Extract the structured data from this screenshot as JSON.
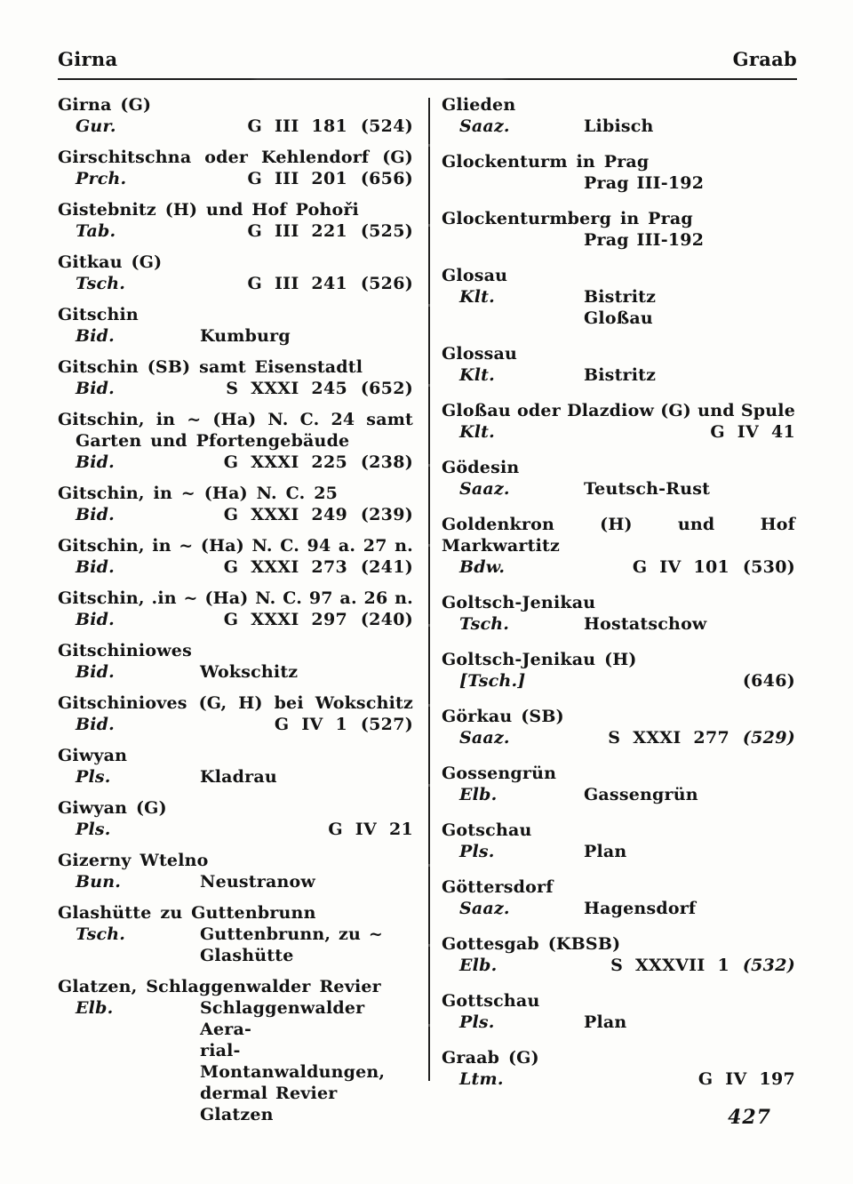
{
  "page": {
    "running_header_left": "Girna",
    "running_header_right": "Graab",
    "page_number": "427"
  },
  "columns": {
    "left": {
      "entries": [
        {
          "head": [
            "Girna (G)"
          ],
          "details": [
            {
              "abbr": "Gur.",
              "ref": "G III 181",
              "paren": "(524)"
            }
          ]
        },
        {
          "head": [
            "Girschitschna oder Kehlendorf (G)"
          ],
          "details": [
            {
              "abbr": "Prch.",
              "ref": "G III 201",
              "paren": "(656)"
            }
          ]
        },
        {
          "head": [
            "Gistebnitz (H) und Hof Pohoři"
          ],
          "details": [
            {
              "abbr": "Tab.",
              "ref": "G III 221",
              "paren": "(525)"
            }
          ]
        },
        {
          "head": [
            "Gitkau (G)"
          ],
          "details": [
            {
              "abbr": "Tsch.",
              "ref": "G III 241",
              "paren": "(526)"
            }
          ]
        },
        {
          "head": [
            "Gitschin"
          ],
          "details": [
            {
              "abbr": "Bid.",
              "value": "Kumburg"
            }
          ]
        },
        {
          "head": [
            "Gitschin (SB) samt Eisenstadtl"
          ],
          "details": [
            {
              "abbr": "Bid.",
              "ref": "S XXXI 245",
              "paren": "(652)"
            }
          ]
        },
        {
          "head": [
            "Gitschin, in ~ (Ha) N. C. 24 samt",
            "Garten und Pfortengebäude"
          ],
          "details": [
            {
              "abbr": "Bid.",
              "ref": "G XXXI 225",
              "paren": "(238)"
            }
          ]
        },
        {
          "head": [
            "Gitschin, in ~ (Ha) N. C. 25"
          ],
          "details": [
            {
              "abbr": "Bid.",
              "ref": "G XXXI 249",
              "paren": "(239)"
            }
          ]
        },
        {
          "head": [
            "Gitschin, in ~ (Ha) N. C. 94 a. 27 n."
          ],
          "details": [
            {
              "abbr": "Bid.",
              "ref": "G XXXI 273",
              "paren": "(241)"
            }
          ]
        },
        {
          "head": [
            "Gitschin, .in ~ (Ha) N. C. 97 a. 26 n."
          ],
          "details": [
            {
              "abbr": "Bid.",
              "ref": "G XXXI 297",
              "paren": "(240)"
            }
          ]
        },
        {
          "head": [
            "Gitschiniowes"
          ],
          "details": [
            {
              "abbr": "Bid.",
              "value": "Wokschitz"
            }
          ]
        },
        {
          "head": [
            "Gitschinioves (G, H) bei Wokschitz"
          ],
          "details": [
            {
              "abbr": "Bid.",
              "ref": "G IV 1",
              "paren": "(527)"
            }
          ]
        },
        {
          "head": [
            "Giwyan"
          ],
          "details": [
            {
              "abbr": "Pls.",
              "value": "Kladrau"
            }
          ]
        },
        {
          "head": [
            "Giwyan (G)"
          ],
          "details": [
            {
              "abbr": "Pls.",
              "ref": "G IV 21"
            }
          ]
        },
        {
          "head": [
            "Gizerny Wtelno"
          ],
          "details": [
            {
              "abbr": "Bun.",
              "value": "Neustranow"
            }
          ]
        },
        {
          "head": [
            "Glashütte zu Guttenbrunn"
          ],
          "details": [
            {
              "abbr": "Tsch.",
              "value": "Guttenbrunn, zu ~\nGlashütte"
            }
          ]
        },
        {
          "head": [
            "Glatzen, Schlaggenwalder Revier"
          ],
          "details": [
            {
              "abbr": "Elb.",
              "value": "Schlaggenwalder Aera-\nrial-Montanwaldungen,\ndermal Revier Glatzen"
            }
          ]
        }
      ]
    },
    "right": {
      "entries": [
        {
          "head": [
            "Glieden"
          ],
          "details": [
            {
              "abbr": "Saaz.",
              "value": "Libisch"
            }
          ]
        },
        {
          "head": [
            "Glockenturm in Prag"
          ],
          "details": [
            {
              "value": "Prag III-192"
            }
          ]
        },
        {
          "head": [
            "Glockenturmberg in Prag"
          ],
          "details": [
            {
              "value": "Prag III-192"
            }
          ]
        },
        {
          "head": [
            "Glosau"
          ],
          "details": [
            {
              "abbr": "Klt.",
              "value": "Bistritz\nGloßau"
            }
          ]
        },
        {
          "head": [
            "Glossau"
          ],
          "details": [
            {
              "abbr": "Klt.",
              "value": "Bistritz"
            }
          ]
        },
        {
          "head": [
            "Gloßau oder Dlazdiow (G) und Spule"
          ],
          "details": [
            {
              "abbr": "Klt.",
              "ref": "G IV 41"
            }
          ]
        },
        {
          "head": [
            "Gödesin"
          ],
          "details": [
            {
              "abbr": "Saaz.",
              "value": "Teutsch-Rust"
            }
          ]
        },
        {
          "head": [
            "Goldenkron (H) und Hof Markwartitz"
          ],
          "details": [
            {
              "abbr": "Bdw.",
              "ref": "G IV 101",
              "paren": "(530)"
            }
          ]
        },
        {
          "head": [
            "Goltsch-Jenikau"
          ],
          "details": [
            {
              "abbr": "Tsch.",
              "value": "Hostatschow"
            }
          ]
        },
        {
          "head": [
            "Goltsch-Jenikau (H)"
          ],
          "details": [
            {
              "abbr": "[Tsch.]",
              "paren": "(646)"
            }
          ]
        },
        {
          "head": [
            "Görkau (SB)"
          ],
          "details": [
            {
              "abbr": "Saaz.",
              "ref": "S XXXI 277",
              "paren": "(529)",
              "paren_style": "italic"
            }
          ]
        },
        {
          "head": [
            "Gossengrün"
          ],
          "details": [
            {
              "abbr": "Elb.",
              "value": "Gassengrün"
            }
          ]
        },
        {
          "head": [
            "Gotschau"
          ],
          "details": [
            {
              "abbr": "Pls.",
              "value": "Plan"
            }
          ]
        },
        {
          "head": [
            "Göttersdorf"
          ],
          "details": [
            {
              "abbr": "Saaz.",
              "value": "Hagensdorf"
            }
          ]
        },
        {
          "head": [
            "Gottesgab (KBSB)"
          ],
          "details": [
            {
              "abbr": "Elb.",
              "ref": "S XXXVII 1",
              "paren": "(532)",
              "paren_style": "italic"
            }
          ]
        },
        {
          "head": [
            "Gottschau"
          ],
          "details": [
            {
              "abbr": "Pls.",
              "value": "Plan"
            }
          ]
        },
        {
          "head": [
            "Graab (G)"
          ],
          "details": [
            {
              "abbr": "Ltm.",
              "ref": "G IV 197"
            }
          ]
        }
      ]
    }
  }
}
